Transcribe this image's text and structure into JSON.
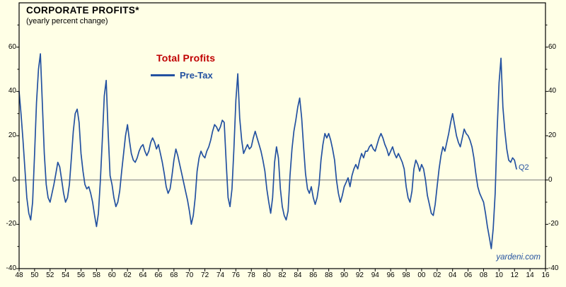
{
  "chart_data": {
    "type": "line",
    "title": "CORPORATE PROFITS*",
    "subtitle": "(yearly percent change)",
    "legend_group": "Total Profits",
    "watermark": "yardeni.com",
    "annotations": [
      {
        "text": "Q2",
        "x": 2012.25,
        "y": 5
      }
    ],
    "xlim": [
      1948,
      2016
    ],
    "ylim": [
      -40,
      80
    ],
    "x_tick_interval": 2,
    "x_tick_labels": [
      "48",
      "50",
      "52",
      "54",
      "56",
      "58",
      "60",
      "62",
      "64",
      "66",
      "68",
      "70",
      "72",
      "74",
      "76",
      "78",
      "80",
      "82",
      "84",
      "86",
      "88",
      "90",
      "92",
      "94",
      "96",
      "98",
      "00",
      "02",
      "04",
      "06",
      "08",
      "10",
      "12",
      "14",
      "16"
    ],
    "y_tick_values": [
      60,
      40,
      20,
      0,
      -20,
      -40
    ],
    "grid": false,
    "zero_line": true,
    "legend_position": "inside-top-left-center",
    "colors": {
      "background": "#FFFFE6",
      "line": "#2351A0",
      "legend_group": "#C00000",
      "frame": "#000000",
      "zero_line": "#666666",
      "text": "#000000"
    },
    "series": [
      {
        "name": "Pre-Tax",
        "color": "#2351A0",
        "frequency": "quarterly",
        "x_start": 1948.0,
        "x_step": 0.25,
        "values": [
          40,
          30,
          18,
          5,
          -8,
          -15,
          -18,
          -10,
          12,
          35,
          50,
          57,
          35,
          12,
          -2,
          -8,
          -10,
          -6,
          -2,
          3,
          8,
          6,
          0,
          -6,
          -10,
          -8,
          -2,
          10,
          22,
          30,
          32,
          26,
          12,
          4,
          -2,
          -4,
          -3,
          -6,
          -10,
          -16,
          -21,
          -15,
          0,
          18,
          38,
          45,
          22,
          2,
          -2,
          -8,
          -12,
          -10,
          -5,
          4,
          12,
          20,
          25,
          18,
          12,
          9,
          8,
          10,
          13,
          15,
          16,
          13,
          11,
          13,
          17,
          19,
          17,
          14,
          16,
          12,
          8,
          3,
          -3,
          -6,
          -4,
          2,
          9,
          14,
          11,
          7,
          3,
          -1,
          -5,
          -9,
          -14,
          -20,
          -16,
          -8,
          4,
          10,
          13,
          11,
          10,
          13,
          15,
          18,
          22,
          25,
          24,
          22,
          24,
          27,
          26,
          8,
          -8,
          -12,
          -4,
          14,
          36,
          48,
          28,
          18,
          12,
          14,
          16,
          14,
          15,
          19,
          22,
          19,
          16,
          13,
          9,
          4,
          -4,
          -10,
          -15,
          -8,
          8,
          15,
          10,
          -4,
          -12,
          -16,
          -18,
          -14,
          2,
          14,
          22,
          27,
          33,
          37,
          28,
          15,
          3,
          -4,
          -6,
          -3,
          -8,
          -11,
          -8,
          -2,
          9,
          16,
          21,
          19,
          21,
          18,
          14,
          9,
          0,
          -6,
          -10,
          -7,
          -3,
          -1,
          1,
          -3,
          2,
          5,
          7,
          5,
          9,
          12,
          10,
          13,
          13,
          15,
          16,
          14,
          13,
          16,
          19,
          21,
          19,
          16,
          14,
          11,
          13,
          15,
          12,
          10,
          12,
          10,
          8,
          5,
          -3,
          -8,
          -10,
          -5,
          5,
          9,
          7,
          4,
          7,
          5,
          0,
          -7,
          -11,
          -15,
          -16,
          -11,
          -3,
          5,
          11,
          15,
          13,
          17,
          21,
          26,
          30,
          25,
          20,
          17,
          15,
          19,
          23,
          21,
          20,
          18,
          15,
          10,
          3,
          -3,
          -6,
          -8,
          -10,
          -15,
          -21,
          -26,
          -31,
          -22,
          -6,
          22,
          44,
          55,
          33,
          22,
          14,
          9,
          8,
          10,
          9,
          5
        ]
      }
    ]
  }
}
